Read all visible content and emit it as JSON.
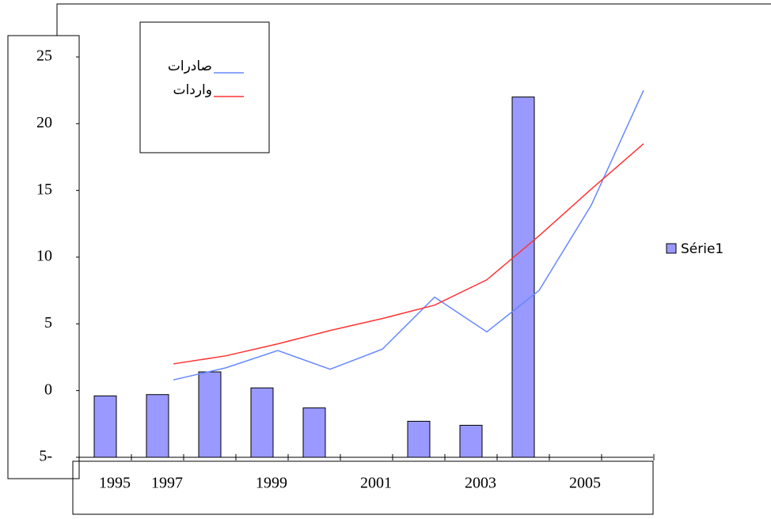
{
  "chart_data": {
    "type": "bar_line",
    "categories": [
      "1995",
      "1997",
      null,
      "1999",
      null,
      "2001",
      null,
      "2003",
      null,
      "2005",
      null
    ],
    "series": [
      {
        "name": "Série1",
        "type": "bar",
        "color": "#9999ff",
        "values": [
          -0.4,
          -0.3,
          1.4,
          0.2,
          -1.3,
          null,
          -2.3,
          -2.6,
          22,
          null,
          null
        ]
      },
      {
        "name": "صادرات",
        "type": "line",
        "color": "#6688ff",
        "values": [
          null,
          0.8,
          1.7,
          3.0,
          1.6,
          3.1,
          7.0,
          4.4,
          7.5,
          13.9,
          22.5
        ]
      },
      {
        "name": "واردات",
        "type": "line",
        "color": "#ff3333",
        "values": [
          null,
          2.0,
          2.6,
          3.5,
          4.5,
          5.4,
          6.4,
          8.3,
          11.6,
          15.1,
          18.5
        ]
      }
    ],
    "ylim": [
      -5,
      25
    ],
    "yticks": [
      {
        "value": -5,
        "label": "5-"
      },
      0,
      5,
      10,
      15,
      20,
      25
    ]
  }
}
